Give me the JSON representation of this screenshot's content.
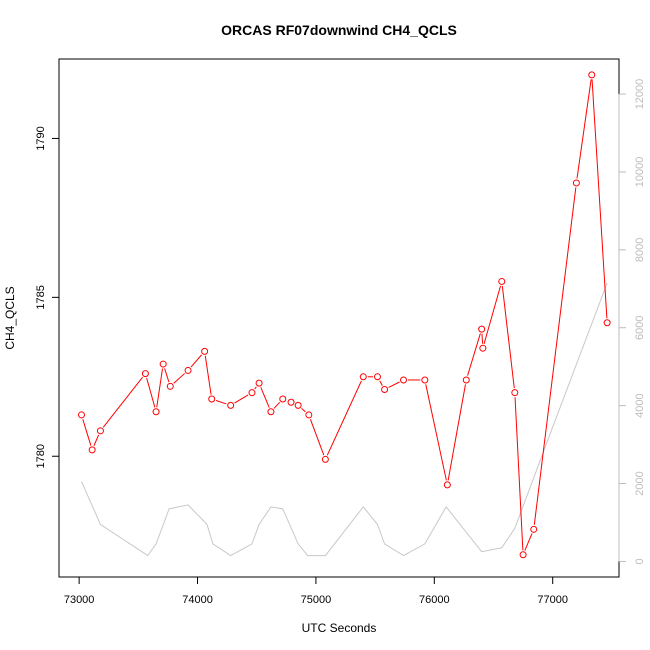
{
  "chart_data": {
    "type": "line",
    "title": "ORCAS RF07downwind CH4_QCLS",
    "xlabel": "UTC Seconds",
    "ylabel": "CH4_QCLS",
    "xlim": [
      72830,
      77560
    ],
    "ylim": [
      1776.2,
      1792.5
    ],
    "y2lim": [
      -400,
      12900
    ],
    "x_ticks": [
      73000,
      74000,
      75000,
      76000,
      77000
    ],
    "y_ticks": [
      1780,
      1785,
      1790
    ],
    "y2_ticks": [
      0,
      2000,
      4000,
      6000,
      8000,
      10000,
      12000
    ],
    "colors": {
      "primary": "#ff0000",
      "secondary": "#c8c8c8",
      "frame": "#000000"
    },
    "series": [
      {
        "axis": "left",
        "marker": "open-circle",
        "x": [
          73020,
          73110,
          73180,
          73560,
          73650,
          73710,
          73770,
          73920,
          74060,
          74120,
          74280,
          74460,
          74520,
          74620,
          74720,
          74790,
          74850,
          74940,
          75080,
          75400,
          75520,
          75580,
          75740,
          75920,
          76110,
          76270,
          76400,
          76410,
          76570,
          76680,
          76750,
          76840,
          77200,
          77330,
          77460
        ],
        "y": [
          1781.3,
          1780.2,
          1780.8,
          1782.6,
          1781.4,
          1782.9,
          1782.2,
          1782.7,
          1783.3,
          1781.8,
          1781.6,
          1782.0,
          1782.3,
          1781.4,
          1781.8,
          1781.7,
          1781.6,
          1781.3,
          1779.9,
          1782.5,
          1782.5,
          1782.1,
          1782.4,
          1782.4,
          1779.1,
          1782.4,
          1784.0,
          1783.4,
          1785.5,
          1782.0,
          1776.9,
          1777.7,
          1788.6,
          1792.0,
          1784.2
        ]
      },
      {
        "axis": "right",
        "x": [
          73020,
          73180,
          73580,
          73650,
          73760,
          73920,
          74080,
          74130,
          74280,
          74460,
          74520,
          74620,
          74720,
          74850,
          74930,
          75080,
          75400,
          75520,
          75580,
          75740,
          75920,
          76100,
          76400,
          76570,
          76680,
          77000,
          77460
        ],
        "y": [
          2050,
          950,
          150,
          450,
          1350,
          1450,
          950,
          450,
          150,
          450,
          950,
          1400,
          1350,
          450,
          150,
          150,
          1400,
          950,
          450,
          150,
          450,
          1400,
          250,
          350,
          850,
          3450,
          7150
        ]
      }
    ]
  }
}
